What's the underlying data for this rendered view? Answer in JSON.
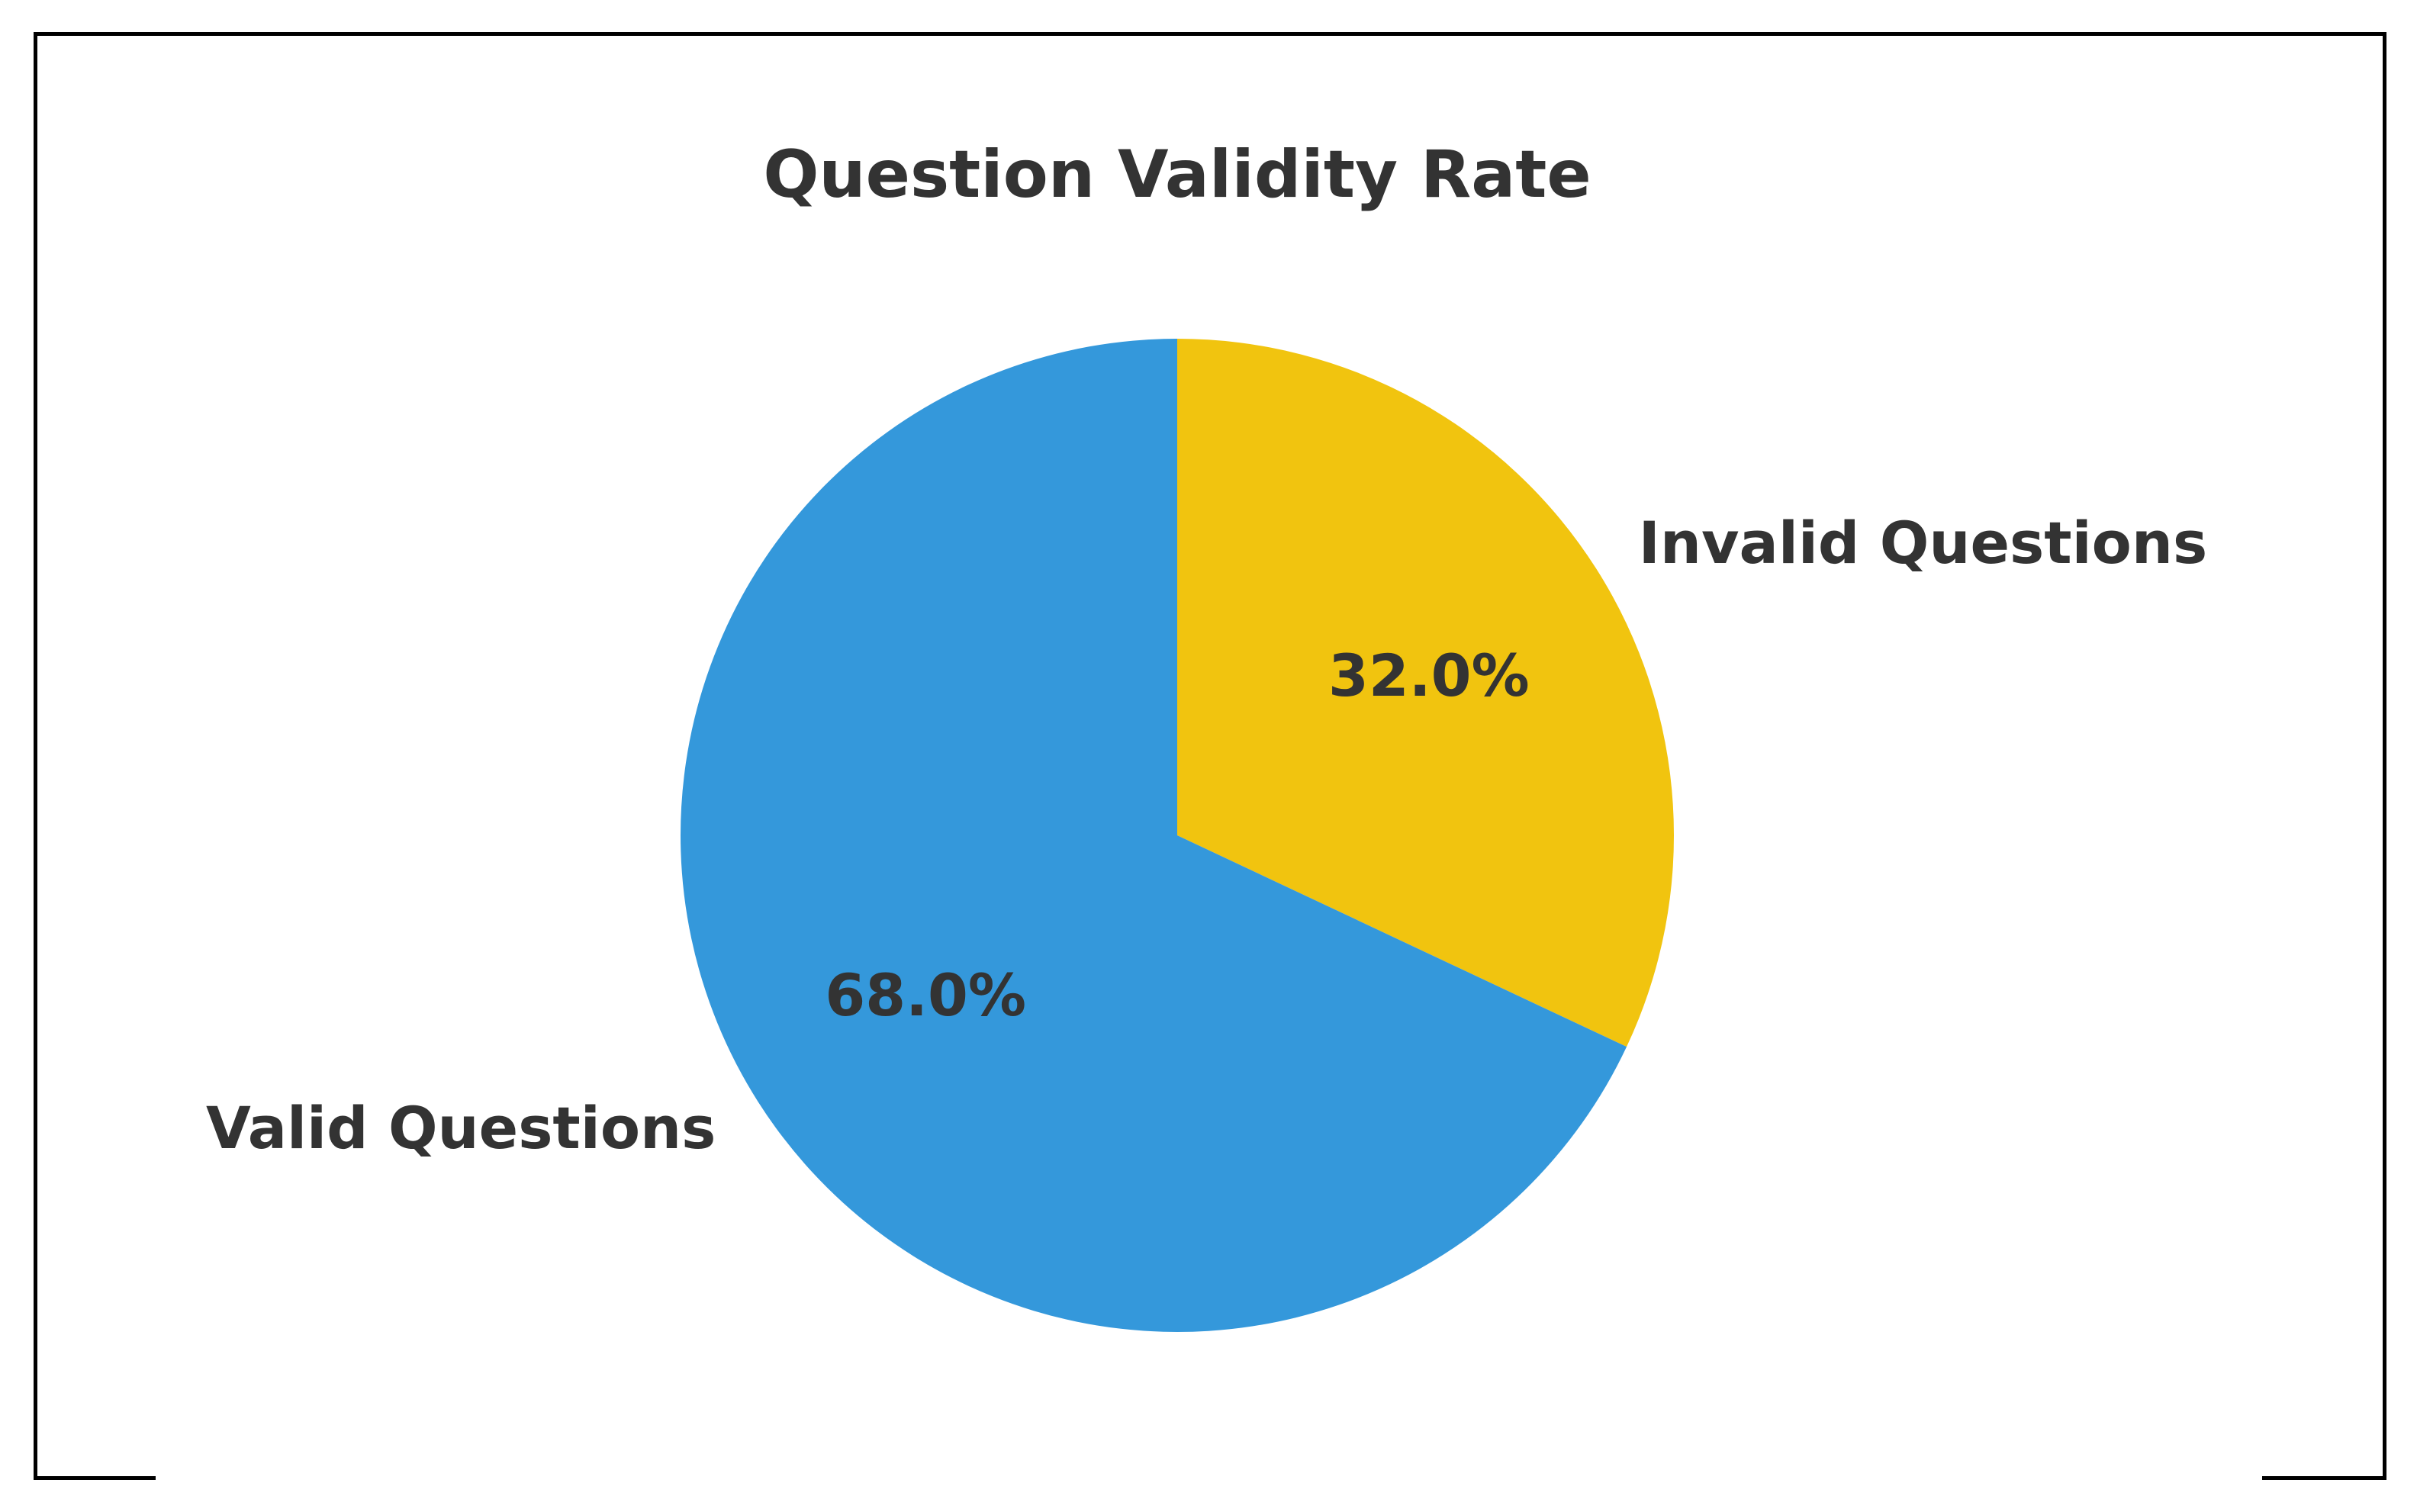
{
  "chart_data": {
    "type": "pie",
    "title": "Question Validity Rate",
    "start_angle": "top",
    "direction": "clockwise",
    "slices": [
      {
        "label": "Invalid Questions",
        "value": 32.0,
        "pct_label": "32.0%",
        "color": "#f1c40f"
      },
      {
        "label": "Valid Questions",
        "value": 68.0,
        "pct_label": "68.0%",
        "color": "#3498db"
      }
    ]
  }
}
